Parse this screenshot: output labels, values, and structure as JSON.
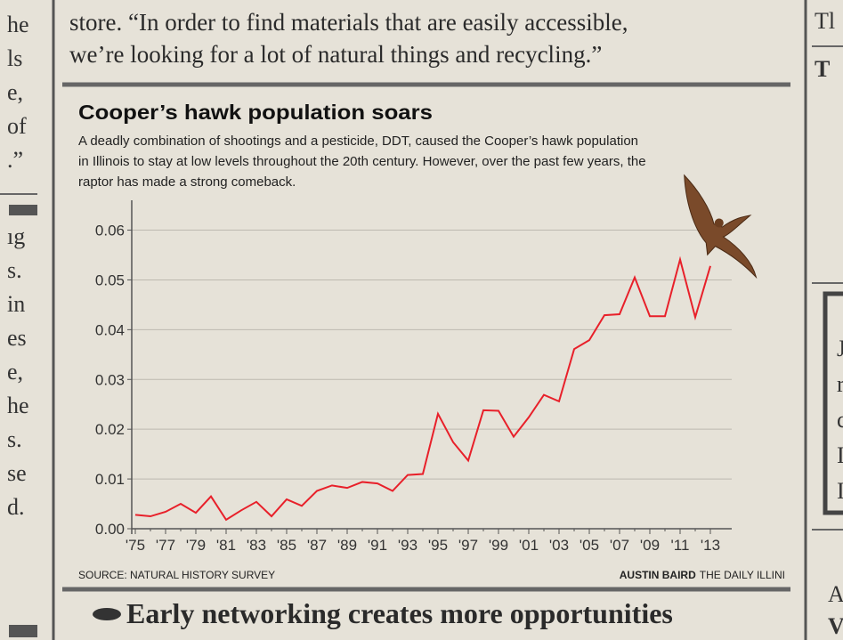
{
  "article": {
    "lead_lines": [
      "store. “In order to find materials that are easily accessible,",
      "we’re looking for a lot of natural things and recycling.”"
    ],
    "left_fragments": [
      "he",
      "ls",
      "e,",
      "of",
      ".”",
      "ıg",
      "s.",
      "in",
      "es",
      "e,",
      "he",
      "s.",
      "se",
      "d."
    ],
    "right_fragments": [
      "Tl",
      "T",
      "J",
      "r",
      "c",
      "I",
      "I",
      "A",
      "V"
    ],
    "headline": "Early networking creates more opportunities"
  },
  "chart_data": {
    "type": "line",
    "title": "Cooper’s hawk population soars",
    "subtitle_lines": [
      "A deadly combination of shootings and a pesticide, DDT, caused the Cooper’s hawk population",
      "in Illinois to stay at low levels throughout the 20th century. However, over the past few years, the",
      "raptor has made a strong comeback."
    ],
    "source": "SOURCE: NATURAL HISTORY SURVEY",
    "credit_name": "AUSTIN BAIRD",
    "credit_org": "THE DAILY ILLINI",
    "categories": [
      "'75",
      null,
      "'77",
      null,
      "'79",
      null,
      "'81",
      null,
      "'83",
      null,
      "'85",
      null,
      "'87",
      null,
      "'89",
      null,
      "'91",
      null,
      "'93",
      null,
      "'95",
      null,
      "'97",
      null,
      "'99",
      null,
      "'01",
      null,
      "'03",
      null,
      "'05",
      null,
      "'07",
      null,
      "'09",
      null,
      "'11",
      null,
      "'13"
    ],
    "values": [
      0.0028,
      0.0025,
      0.0034,
      0.005,
      0.0032,
      0.0065,
      0.0018,
      0.0037,
      0.0054,
      0.0025,
      0.0059,
      0.0046,
      0.0076,
      0.0087,
      0.0082,
      0.0094,
      0.0091,
      0.0076,
      0.0108,
      0.011,
      0.0231,
      0.0174,
      0.0137,
      0.0238,
      0.0237,
      0.0185,
      0.0224,
      0.0269,
      0.0256,
      0.0361,
      0.0379,
      0.0429,
      0.0431,
      0.0505,
      0.0427,
      0.0427,
      0.0541,
      0.0425,
      0.0528
    ],
    "color": "#e8202a",
    "ylim": [
      0,
      0.066
    ],
    "yticks": [
      {
        "value": 0,
        "label": "0.00"
      },
      0.01,
      0.02,
      0.03,
      0.04,
      0.05,
      0.06
    ],
    "grid": true
  }
}
